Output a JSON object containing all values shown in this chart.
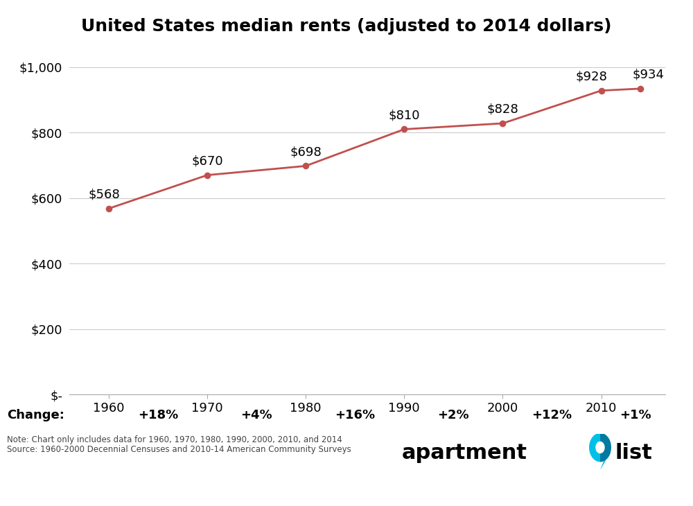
{
  "title": "United States median rents (adjusted to 2014 dollars)",
  "years": [
    1960,
    1970,
    1980,
    1990,
    2000,
    2010,
    2014
  ],
  "values": [
    568,
    670,
    698,
    810,
    828,
    928,
    934
  ],
  "labels": [
    "$568",
    "$670",
    "$698",
    "$810",
    "$828",
    "$928",
    "$934"
  ],
  "line_color": "#c0504d",
  "marker_color": "#c0504d",
  "background_color": "#ffffff",
  "plot_bg_color": "#ffffff",
  "grid_color": "#cccccc",
  "title_fontsize": 18,
  "label_fontsize": 13,
  "tick_fontsize": 13,
  "ylim": [
    0,
    1050
  ],
  "yticks": [
    0,
    200,
    400,
    600,
    800,
    1000
  ],
  "ytick_labels": [
    "$-",
    "$200",
    "$400",
    "$600",
    "$800",
    "$1,000"
  ],
  "xticks": [
    1960,
    1970,
    1980,
    1990,
    2000,
    2010
  ],
  "change_label": "Change:",
  "change_values": [
    "+18%",
    "+4%",
    "+16%",
    "+2%",
    "+12%",
    "+1%"
  ],
  "change_bg": "#eaf2f8",
  "note_line1": "Note: Chart only includes data for 1960, 1970, 1980, 1990, 2000, 2010, and 2014",
  "note_line2": "Source: 1960-2000 Decennial Censuses and 2010-14 American Community Surveys",
  "logo_color_light": "#00c0e8",
  "logo_color_dark": "#007aa0",
  "logo_white": "#ffffff"
}
